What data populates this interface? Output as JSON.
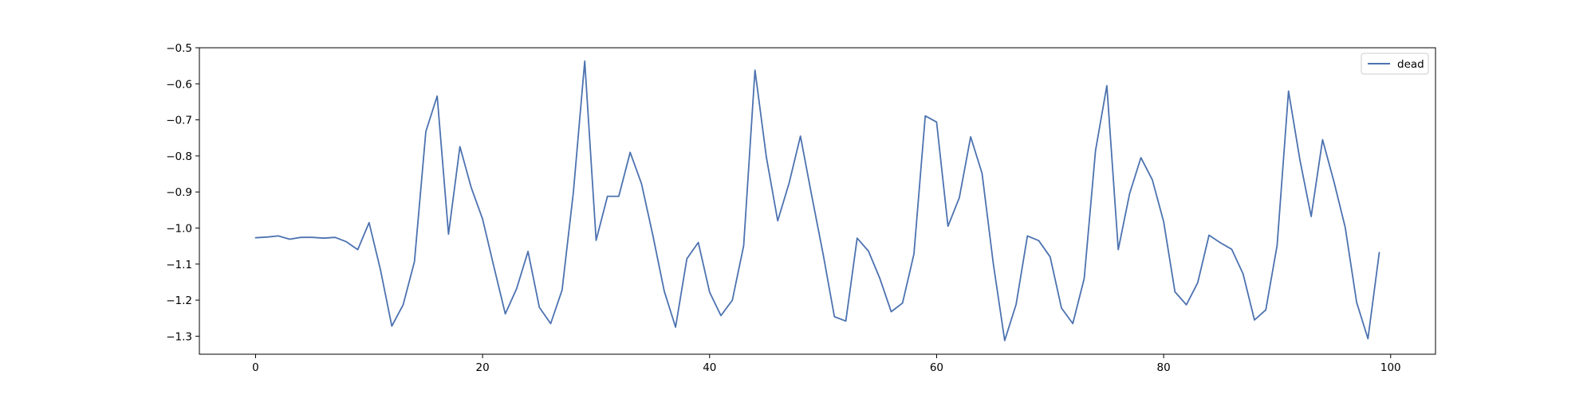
{
  "chart_data": {
    "type": "line",
    "title": "",
    "xlabel": "",
    "ylabel": "",
    "xlim": [
      -4.95,
      103.95
    ],
    "ylim": [
      -1.35,
      -0.5
    ],
    "x_ticks": [
      0,
      20,
      40,
      60,
      80,
      100
    ],
    "y_ticks": [
      -1.3,
      -1.2,
      -1.1,
      -1.0,
      -0.9,
      -0.8,
      -0.7,
      -0.6,
      -0.5
    ],
    "x_tick_labels": [
      "0",
      "20",
      "40",
      "60",
      "80",
      "100"
    ],
    "y_tick_labels": [
      "−1.3",
      "−1.2",
      "−1.1",
      "−1.0",
      "−0.9",
      "−0.8",
      "−0.7",
      "−0.6",
      "−0.5"
    ],
    "grid": false,
    "legend_position": "top-right",
    "series": [
      {
        "name": "dead",
        "color": "#4c72b0",
        "x": [
          0,
          1,
          2,
          3,
          4,
          5,
          6,
          7,
          8,
          9,
          10,
          11,
          12,
          13,
          14,
          15,
          16,
          17,
          18,
          19,
          20,
          21,
          22,
          23,
          24,
          25,
          26,
          27,
          28,
          29,
          30,
          31,
          32,
          33,
          34,
          35,
          36,
          37,
          38,
          39,
          40,
          41,
          42,
          43,
          44,
          45,
          46,
          47,
          48,
          49,
          50,
          51,
          52,
          53,
          54,
          55,
          56,
          57,
          58,
          59,
          60,
          61,
          62,
          63,
          64,
          65,
          66,
          67,
          68,
          69,
          70,
          71,
          72,
          73,
          74,
          75,
          76,
          77,
          78,
          79,
          80,
          81,
          82,
          83,
          84,
          85,
          86,
          87,
          88,
          89,
          90,
          91,
          92,
          93,
          94,
          95,
          96,
          97,
          98,
          99
        ],
        "values": [
          -1.027,
          -1.025,
          -1.022,
          -1.031,
          -1.026,
          -1.026,
          -1.028,
          -1.026,
          -1.038,
          -1.06,
          -0.985,
          -1.115,
          -1.272,
          -1.213,
          -1.093,
          -0.732,
          -0.634,
          -1.017,
          -0.774,
          -0.888,
          -0.975,
          -1.108,
          -1.238,
          -1.168,
          -1.065,
          -1.22,
          -1.265,
          -1.172,
          -0.9,
          -0.537,
          -1.034,
          -0.912,
          -0.912,
          -0.79,
          -0.877,
          -1.02,
          -1.175,
          -1.275,
          -1.085,
          -1.04,
          -1.178,
          -1.243,
          -1.2,
          -1.049,
          -0.562,
          -0.804,
          -0.98,
          -0.876,
          -0.745,
          -0.911,
          -1.072,
          -1.246,
          -1.258,
          -1.028,
          -1.064,
          -1.14,
          -1.232,
          -1.208,
          -1.072,
          -0.689,
          -0.706,
          -0.995,
          -0.916,
          -0.747,
          -0.848,
          -1.1,
          -1.312,
          -1.212,
          -1.022,
          -1.035,
          -1.08,
          -1.222,
          -1.265,
          -1.14,
          -0.785,
          -0.605,
          -1.06,
          -0.905,
          -0.805,
          -0.866,
          -0.982,
          -1.177,
          -1.213,
          -1.152,
          -1.02,
          -1.041,
          -1.059,
          -1.127,
          -1.255,
          -1.227,
          -1.048,
          -0.62,
          -0.81,
          -0.968,
          -0.755,
          -0.871,
          -0.998,
          -1.206,
          -1.307,
          -1.068
        ]
      }
    ]
  }
}
